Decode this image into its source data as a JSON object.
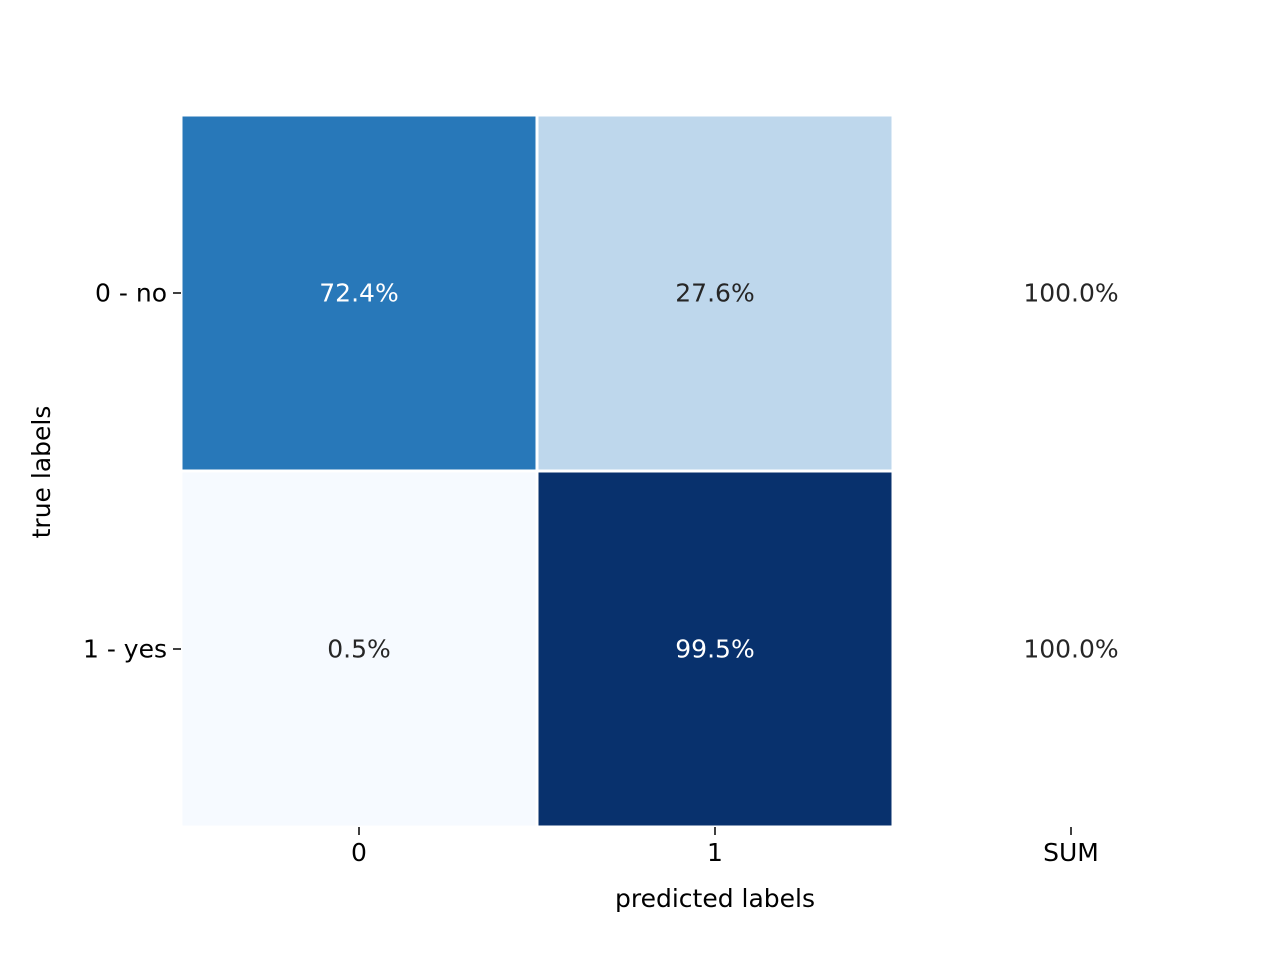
{
  "chart_data": {
    "type": "heatmap",
    "title": "",
    "xlabel": "predicted labels",
    "ylabel": "true labels",
    "x_tick_labels": [
      "0",
      "1",
      "SUM"
    ],
    "y_tick_labels": [
      "0 - no",
      "1 - yes"
    ],
    "rows": [
      {
        "label": "0 - no",
        "cells": [
          {
            "value": 72.4,
            "text": "72.4%"
          },
          {
            "value": 27.6,
            "text": "27.6%"
          }
        ],
        "sum_text": "100.0%"
      },
      {
        "label": "1 - yes",
        "cells": [
          {
            "value": 0.5,
            "text": "0.5%"
          },
          {
            "value": 99.5,
            "text": "99.5%"
          }
        ],
        "sum_text": "100.0%"
      }
    ],
    "colormap": "Blues",
    "value_range": [
      0,
      100
    ],
    "colorbar": false,
    "grid": false
  },
  "colors": {
    "dark_text": "#262626",
    "light_text": "#ffffff",
    "cell_border": "#ffffff",
    "cmap_stops": [
      "#f7fbff",
      "#deebf7",
      "#c6dbef",
      "#9ecae1",
      "#6baed6",
      "#4292c6",
      "#2171b5",
      "#08519c",
      "#08306b"
    ]
  }
}
